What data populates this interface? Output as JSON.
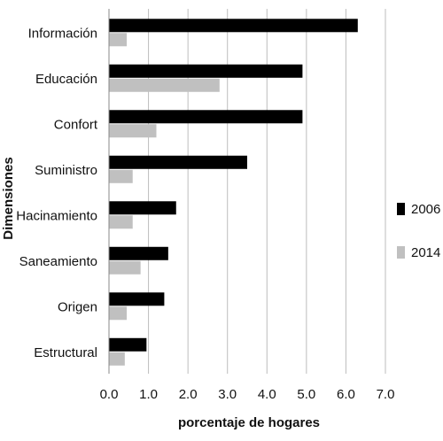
{
  "chart_data": {
    "type": "bar",
    "orientation": "horizontal",
    "categories": [
      "Información",
      "Educación",
      "Confort",
      "Suministro",
      "Hacinamiento",
      "Saneamiento",
      "Origen",
      "Estructural"
    ],
    "series": [
      {
        "name": "2006",
        "color": "#000000",
        "values": [
          6.3,
          4.9,
          4.9,
          3.5,
          1.7,
          1.5,
          1.4,
          0.95
        ]
      },
      {
        "name": "2014",
        "color": "#c0c0c0",
        "values": [
          0.45,
          2.8,
          1.2,
          0.6,
          0.6,
          0.8,
          0.45,
          0.4
        ]
      }
    ],
    "xlabel": "porcentaje de hogares",
    "ylabel": "Dimensiones",
    "xlim": [
      0.0,
      7.0
    ],
    "xticks": [
      "0.0",
      "1.0",
      "2.0",
      "3.0",
      "4.0",
      "5.0",
      "6.0",
      "7.0"
    ],
    "grid": "vertical",
    "legend_position": "right"
  }
}
